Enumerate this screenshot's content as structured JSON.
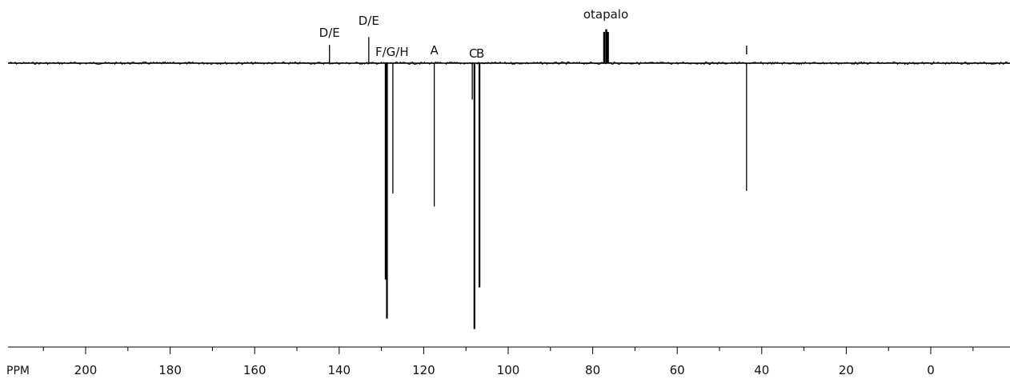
{
  "chart_data": {
    "type": "line",
    "title": "",
    "xlabel": "PPM",
    "ylabel": "",
    "x_reversed": true,
    "xlim": [
      216,
      -18
    ],
    "grid": false,
    "x_ticks": [
      200,
      180,
      160,
      140,
      120,
      100,
      80,
      60,
      40,
      20,
      0
    ],
    "x_tick_labels": [
      "200",
      "180",
      "160",
      "140",
      "120",
      "100",
      "80",
      "60",
      "40",
      "20",
      "0"
    ],
    "y_unit": "relative intensity",
    "ylim": [
      -1.0,
      0.15
    ],
    "series": [
      {
        "peaks": [
          {
            "ppm": 142.3,
            "intensity": 0.07
          },
          {
            "ppm": 133.0,
            "intensity": 0.1
          },
          {
            "ppm": 129.0,
            "intensity": -0.83
          },
          {
            "ppm": 128.7,
            "intensity": -0.98
          },
          {
            "ppm": 127.3,
            "intensity": -0.5
          },
          {
            "ppm": 117.5,
            "intensity": -0.55
          },
          {
            "ppm": 108.5,
            "intensity": -0.14
          },
          {
            "ppm": 108.0,
            "intensity": -1.02
          },
          {
            "ppm": 106.8,
            "intensity": -0.86
          },
          {
            "ppm": 77.3,
            "intensity": 0.12
          },
          {
            "ppm": 76.8,
            "intensity": 0.13
          },
          {
            "ppm": 76.4,
            "intensity": 0.12
          },
          {
            "ppm": 43.6,
            "intensity": -0.49
          }
        ]
      }
    ],
    "annotations": [
      {
        "text": "D/E",
        "ppm": 142.3
      },
      {
        "text": "D/E",
        "ppm": 133.0
      },
      {
        "text": "F/G/H",
        "ppm": 127.5
      },
      {
        "text": "A",
        "ppm": 117.5
      },
      {
        "text": "C",
        "ppm": 108.3
      },
      {
        "text": "B",
        "ppm": 106.6
      },
      {
        "text": "otapalo",
        "ppm": 76.9
      },
      {
        "text": "I",
        "ppm": 43.6
      }
    ]
  }
}
